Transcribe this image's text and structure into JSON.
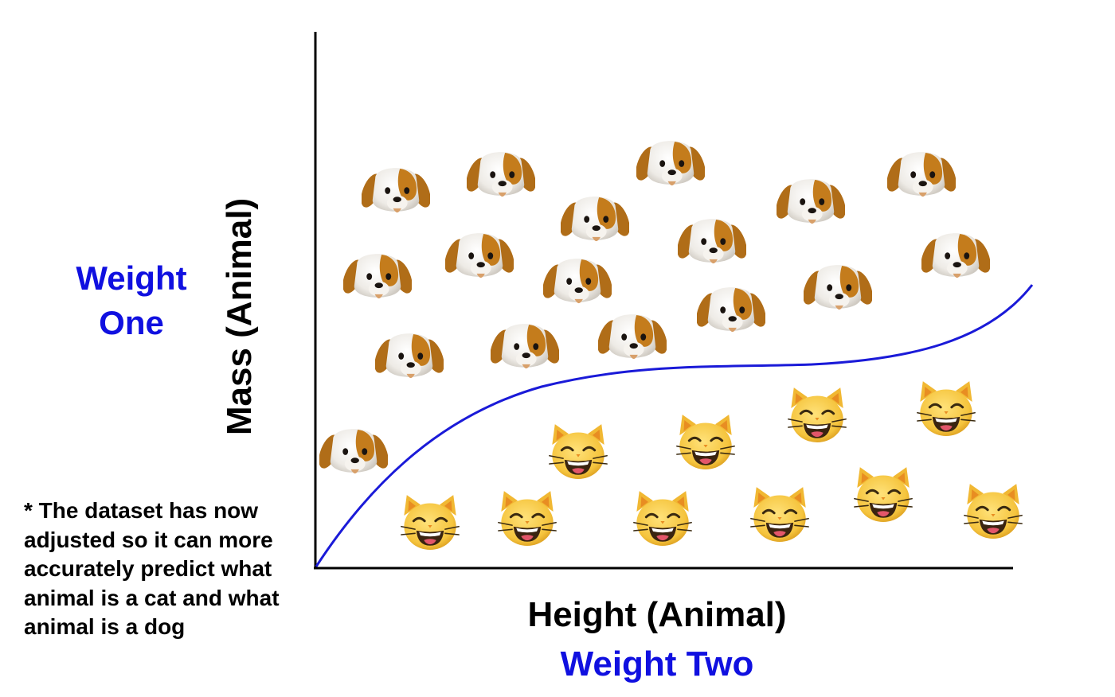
{
  "labels": {
    "y_weight": "Weight\nOne",
    "y_axis": "Mass (Animal)",
    "x_axis": "Height (Animal)",
    "x_weight": "Weight Two",
    "note": "* The dataset has now adjusted so it can more accurately predict what animal is a cat and what animal is a dog"
  },
  "colors": {
    "accent": "#1010e0",
    "text": "#000000",
    "dog_fur": "#c47c1c",
    "dog_face": "#f4f1ec",
    "cat_face": "#f7c948"
  },
  "icons": {
    "dog": "dog-face-icon",
    "cat": "grinning-cat-icon"
  },
  "classes": [
    "dog",
    "cat"
  ]
}
